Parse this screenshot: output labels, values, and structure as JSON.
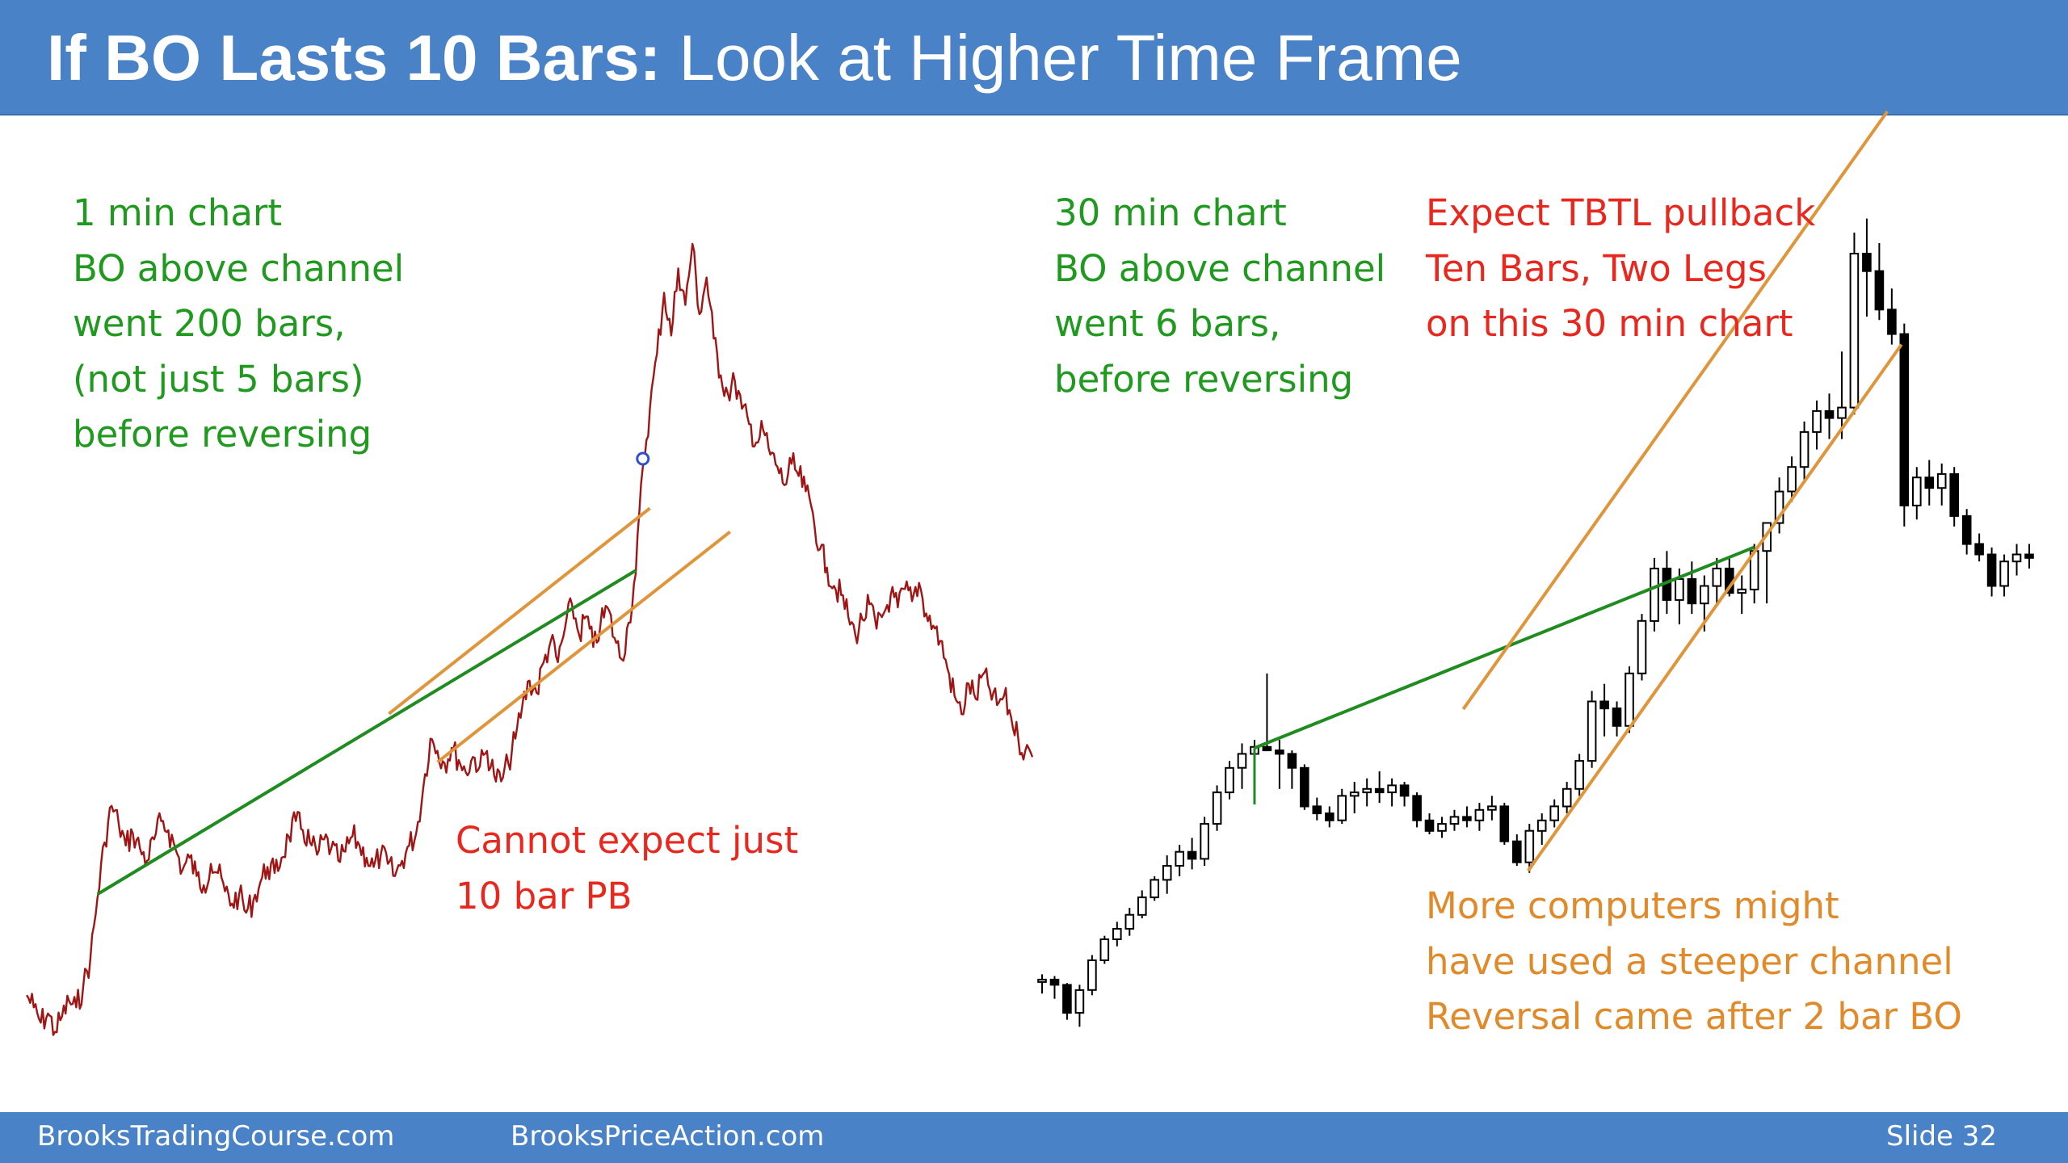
{
  "title": {
    "bold": "If BO Lasts 10 Bars:",
    "normal": "Look at Higher Time Frame"
  },
  "notes": {
    "one_min": [
      "1 min chart",
      "BO above channel",
      "went 200 bars,",
      "(not just 5 bars)",
      "before reversing"
    ],
    "thirty_min": [
      "30 min chart",
      "BO above channel",
      "went 6 bars,",
      "before reversing"
    ],
    "tbtl": [
      "Expect TBTL pullback",
      "Ten Bars, Two Legs",
      "on this 30 min chart"
    ],
    "cannot": [
      "Cannot expect just",
      "10 bar PB"
    ],
    "computers": [
      "More computers might",
      "have used a steeper channel",
      "Reversal came after 2 bar BO"
    ]
  },
  "footer": {
    "left": "BrooksTradingCourse.com",
    "center": "BrooksPriceAction.com",
    "right": "Slide  32"
  },
  "colors": {
    "header": "#4a82c8",
    "price_line": "#a01414",
    "trend_line": "#1e8c1e",
    "channel_line": "#e0953a",
    "green_text": "#1f9a1f",
    "red_text": "#e8281e",
    "orange_text": "#e08a2a"
  },
  "chart_data": [
    {
      "type": "line",
      "title": "",
      "xlabel": "",
      "ylabel": "",
      "series": [
        {
          "values": [
            40,
            36,
            31,
            34,
            28,
            33,
            38,
            36,
            43,
            52,
            72,
            90,
            102,
            96,
            89,
            93,
            88,
            84,
            91,
            97,
            94,
            88,
            81,
            85,
            79,
            76,
            83,
            80,
            74,
            70,
            73,
            67,
            71,
            77,
            82,
            80,
            85,
            92,
            97,
            94,
            90,
            86,
            91,
            88,
            84,
            87,
            92,
            89,
            85,
            82,
            86,
            83,
            79,
            84,
            89,
            93,
            108,
            124,
            120,
            116,
            121,
            117,
            113,
            118,
            115,
            120,
            112,
            110,
            116,
            124,
            135,
            143,
            139,
            149,
            156,
            149,
            160,
            168,
            158,
            164,
            154,
            161,
            167,
            157,
            150,
            162,
            178,
            213,
            232,
            250,
            270,
            256,
            278,
            266,
            286,
            263,
            275,
            255,
            243,
            237,
            241,
            232,
            227,
            221,
            225,
            217,
            213,
            207,
            214,
            210,
            205,
            198,
            186,
            180,
            174,
            171,
            164,
            158,
            163,
            168,
            160,
            165,
            171,
            167,
            173,
            169,
            175,
            165,
            161,
            156,
            147,
            138,
            132,
            142,
            137,
            145,
            140,
            135,
            138,
            131,
            124,
            120,
            118
          ]
        }
      ],
      "trend_line": {
        "from_index": 10,
        "to_index": 86
      },
      "channel": {
        "lower_from_index": 58,
        "upper_from_index": 54,
        "to_index": 113
      }
    },
    {
      "type": "candlestick",
      "title": "",
      "xlabel": "",
      "ylabel": "",
      "series": [
        {
          "ohlc": [
            [
              40,
              44,
              33,
              41
            ],
            [
              41,
              43,
              30,
              38
            ],
            [
              38,
              39,
              18,
              22
            ],
            [
              22,
              38,
              14,
              35
            ],
            [
              35,
              55,
              32,
              52
            ],
            [
              52,
              66,
              50,
              64
            ],
            [
              64,
              74,
              60,
              70
            ],
            [
              70,
              82,
              66,
              78
            ],
            [
              78,
              92,
              76,
              88
            ],
            [
              88,
              100,
              86,
              98
            ],
            [
              98,
              112,
              90,
              106
            ],
            [
              106,
              118,
              100,
              114
            ],
            [
              114,
              122,
              104,
              110
            ],
            [
              110,
              134,
              106,
              130
            ],
            [
              130,
              152,
              126,
              148
            ],
            [
              148,
              166,
              144,
              162
            ],
            [
              162,
              176,
              150,
              170
            ],
            [
              170,
              178,
              160,
              174
            ],
            [
              174,
              216,
              172,
              172
            ],
            [
              172,
              178,
              150,
              170
            ],
            [
              170,
              172,
              150,
              162
            ],
            [
              162,
              164,
              138,
              140
            ],
            [
              140,
              145,
              132,
              136
            ],
            [
              136,
              140,
              128,
              132
            ],
            [
              132,
              150,
              130,
              146
            ],
            [
              146,
              154,
              136,
              148
            ],
            [
              148,
              156,
              140,
              150
            ],
            [
              150,
              160,
              142,
              148
            ],
            [
              148,
              156,
              140,
              152
            ],
            [
              152,
              154,
              140,
              146
            ],
            [
              146,
              148,
              128,
              132
            ],
            [
              132,
              136,
              124,
              126
            ],
            [
              126,
              134,
              122,
              130
            ],
            [
              130,
              138,
              126,
              134
            ],
            [
              134,
              140,
              128,
              132
            ],
            [
              132,
              142,
              126,
              138
            ],
            [
              138,
              146,
              132,
              140
            ],
            [
              140,
              142,
              118,
              120
            ],
            [
              120,
              124,
              106,
              108
            ],
            [
              108,
              130,
              102,
              126
            ],
            [
              126,
              136,
              118,
              132
            ],
            [
              132,
              144,
              128,
              140
            ],
            [
              140,
              154,
              136,
              150
            ],
            [
              150,
              170,
              146,
              166
            ],
            [
              166,
              206,
              162,
              200
            ],
            [
              200,
              210,
              180,
              196
            ],
            [
              196,
              200,
              180,
              186
            ],
            [
              186,
              220,
              182,
              216
            ],
            [
              216,
              250,
              212,
              246
            ],
            [
              246,
              282,
              240,
              276
            ],
            [
              276,
              286,
              250,
              258
            ],
            [
              258,
              276,
              244,
              270
            ],
            [
              270,
              280,
              250,
              256
            ],
            [
              256,
              272,
              240,
              266
            ],
            [
              266,
              282,
              256,
              276
            ],
            [
              276,
              282,
              260,
              262
            ],
            [
              262,
              272,
              250,
              264
            ],
            [
              264,
              290,
              256,
              286
            ],
            [
              286,
              300,
              256,
              302
            ],
            [
              302,
              328,
              296,
              320
            ],
            [
              320,
              340,
              314,
              334
            ],
            [
              334,
              360,
              326,
              354
            ],
            [
              354,
              372,
              344,
              366
            ],
            [
              366,
              376,
              350,
              362
            ],
            [
              362,
              400,
              350,
              368
            ],
            [
              368,
              468,
              364,
              456
            ],
            [
              456,
              476,
              420,
              446
            ],
            [
              446,
              462,
              418,
              424
            ],
            [
              424,
              436,
              404,
              410
            ],
            [
              410,
              416,
              300,
              312
            ],
            [
              312,
              334,
              304,
              328
            ],
            [
              328,
              338,
              312,
              322
            ],
            [
              322,
              336,
              312,
              330
            ],
            [
              330,
              334,
              300,
              306
            ],
            [
              306,
              310,
              284,
              290
            ],
            [
              290,
              296,
              280,
              284
            ],
            [
              284,
              288,
              260,
              266
            ],
            [
              266,
              284,
              260,
              280
            ],
            [
              280,
              290,
              272,
              284
            ],
            [
              284,
              290,
              276,
              282
            ]
          ]
        }
      ],
      "trend_line": {
        "from_bar": 17,
        "to_bar": 57
      },
      "channel": {
        "lower_from_bar": 38,
        "upper_from_bar": 35,
        "to_bar": 68
      }
    }
  ]
}
